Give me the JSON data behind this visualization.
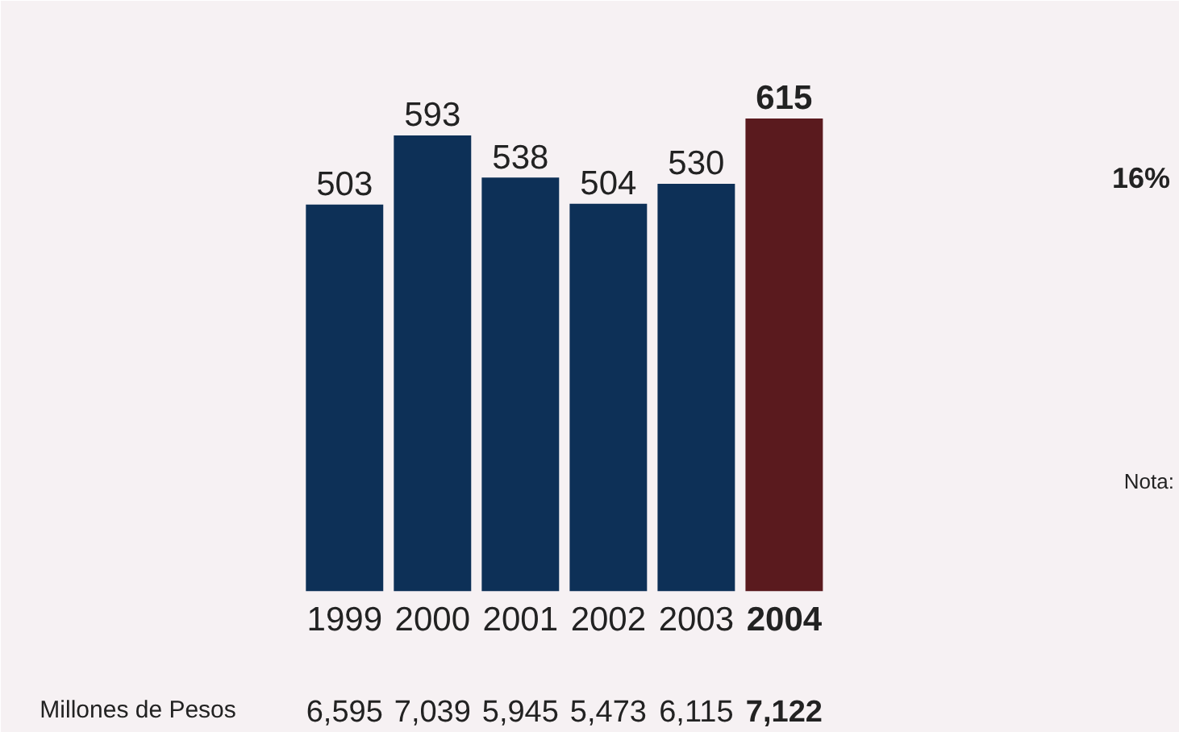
{
  "chart_data": {
    "type": "bar",
    "categories": [
      "1999",
      "2000",
      "2001",
      "2002",
      "2003",
      "2004"
    ],
    "values": [
      503,
      593,
      538,
      504,
      530,
      615
    ],
    "colors": [
      "#0d3057",
      "#0d3057",
      "#0d3057",
      "#0d3057",
      "#0d3057",
      "#5a1a1e"
    ],
    "data_labels": true,
    "annotations": [
      "Millones de Pesos",
      "6,595",
      "7,039",
      "5,945",
      "5,473",
      "6,115",
      "7,122",
      "16%",
      "Nota:"
    ]
  }
}
